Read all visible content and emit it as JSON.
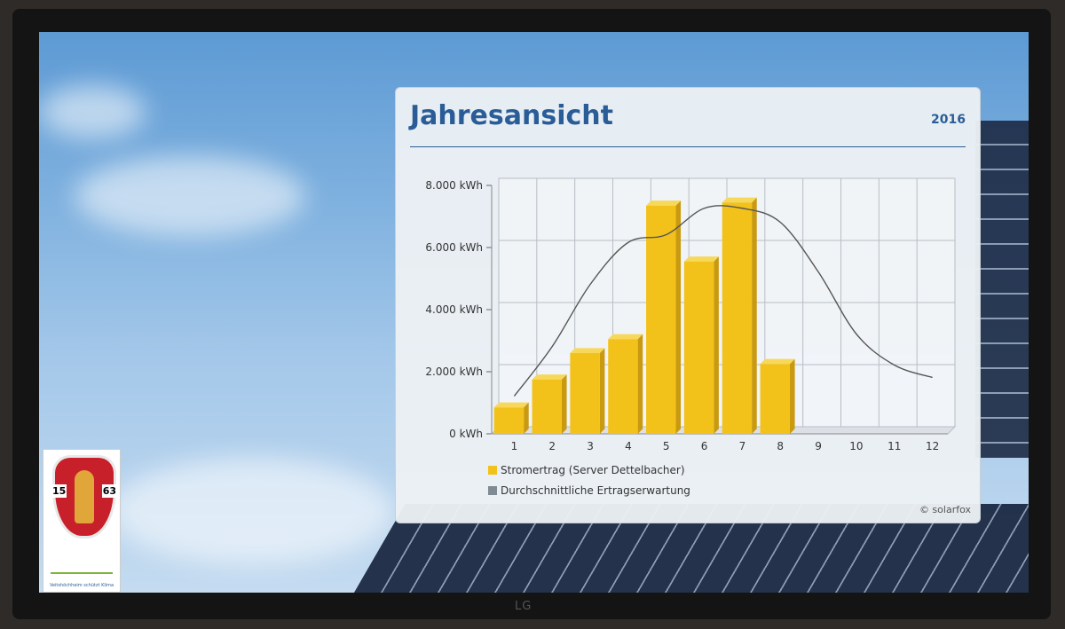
{
  "screen": {
    "title": "Jahresansicht",
    "year": "2016",
    "credit": "© solarfox",
    "brand": "LG",
    "logo_caption": "Veitshöchheim schützt Klima",
    "crest_left": "15",
    "crest_right": "63"
  },
  "colors": {
    "bar": "#f2c21a",
    "bar_side": "#c99a10",
    "bar_top": "#f7d85a",
    "line": "#555555",
    "title": "#2a5d98"
  },
  "chart_data": {
    "type": "bar",
    "title": "Jahresansicht",
    "categories": [
      "1",
      "2",
      "3",
      "4",
      "5",
      "6",
      "7",
      "8",
      "9",
      "10",
      "11",
      "12"
    ],
    "yticks": [
      "0 kWh",
      "2.000 kWh",
      "4.000 kWh",
      "6.000 kWh",
      "8.000 kWh"
    ],
    "ylim": [
      0,
      8000
    ],
    "grid": true,
    "legend_position": "bottom-left",
    "series": [
      {
        "name": "Stromertrag (Server Dettelbacher)",
        "kind": "bar",
        "values": [
          850,
          1750,
          2600,
          3050,
          7350,
          5550,
          7450,
          2250,
          null,
          null,
          null,
          null
        ]
      },
      {
        "name": "Durchschnittliche Ertragserwartung",
        "kind": "line",
        "values": [
          1100,
          2700,
          4700,
          6050,
          6300,
          7150,
          7150,
          6700,
          5100,
          3100,
          2100,
          1700
        ]
      }
    ]
  }
}
